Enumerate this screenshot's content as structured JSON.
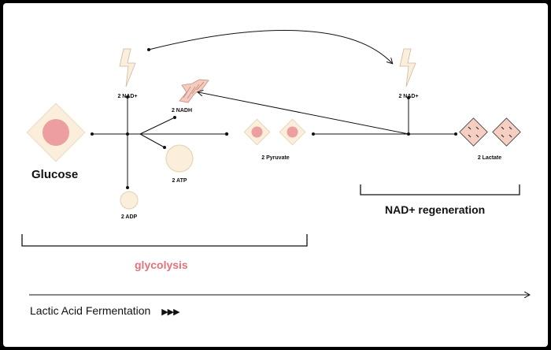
{
  "labels": {
    "glucose": "Glucose",
    "nad_plus_left": "2 NAD+",
    "nadh": "2 NADH",
    "atp": "2 ATP",
    "adp": "2 ADP",
    "pyruvate": "2 Pyruvate",
    "nad_plus_right": "2 NAD+",
    "lactate": "2 Lactate",
    "glycolysis": "glycolysis",
    "nad_regeneration": "NAD+ regeneration",
    "fermentation": "Lactic Acid Fermentation",
    "fermentation_arrows": "▶▶▶"
  },
  "colors": {
    "frame": "#000000",
    "panel": "#ffffff",
    "glucose_fill": "#fbeedb",
    "glucose_core": "#ec9ea0",
    "bolt_fill": "#fbeedb",
    "nadh_fill": "#f4cbbf",
    "atp_fill": "#fbeedb",
    "pyruvate_core": "#ec9ea0",
    "lactate_fill": "#f7cfc2",
    "glycolysis_text": "#e3727a",
    "line": "#111111"
  },
  "icons": {
    "bolt": "lightning-bolt-icon",
    "play": "triple-play-arrow-icon"
  }
}
